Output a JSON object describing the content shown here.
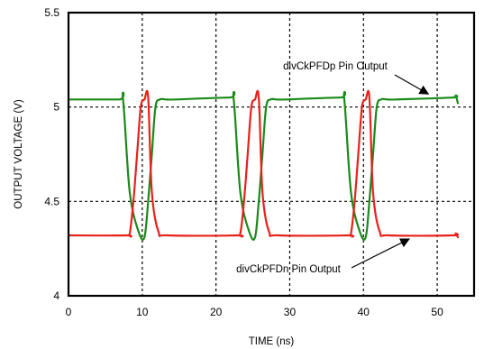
{
  "chart_data": {
    "type": "line",
    "title": "",
    "xlabel": "TIME (ns)",
    "ylabel": "OUTPUT VOLTAGE (V)",
    "xlim": [
      0,
      55
    ],
    "ylim": [
      4,
      5.5
    ],
    "xticks": [
      "0",
      "10",
      "20",
      "30",
      "40",
      "50"
    ],
    "yticks": [
      "4",
      "4.5",
      "5",
      "5.5"
    ],
    "grid": "dotted at x = 10, 20, 30, 40, 50 and y = 4.5, 5",
    "series": [
      {
        "name": "divCkPFDp Pin Output",
        "color": "#1a8a1a",
        "x": [
          0,
          6.8,
          7.4,
          8.3,
          9.5,
          10.3,
          10.8,
          11.3,
          11.8,
          12.4,
          13.2,
          14.5,
          21.8,
          22.4,
          23.3,
          24.5,
          25.3,
          25.8,
          26.3,
          26.8,
          27.4,
          28.2,
          29.5,
          36.8,
          37.4,
          38.3,
          39.5,
          40.3,
          40.8,
          41.3,
          41.8,
          42.4,
          43.2,
          44.5,
          52,
          52.5,
          52.8
        ],
        "values": [
          5.04,
          5.04,
          5.04,
          4.55,
          4.34,
          4.31,
          4.5,
          4.75,
          5.0,
          5.04,
          5.04,
          5.04,
          5.05,
          5.04,
          4.55,
          4.34,
          4.31,
          4.5,
          4.75,
          5.0,
          5.04,
          5.04,
          5.04,
          5.05,
          5.04,
          4.55,
          4.34,
          4.31,
          4.5,
          4.75,
          5.0,
          5.04,
          5.04,
          5.04,
          5.05,
          5.06,
          5.02
        ]
      },
      {
        "name": "divCkPFDn Pin Output",
        "color": "#e8211a",
        "x": [
          0,
          7.8,
          8.3,
          8.8,
          9.3,
          9.8,
          10.3,
          10.8,
          11.3,
          12.2,
          13.5,
          22.8,
          23.3,
          23.8,
          24.3,
          24.8,
          25.3,
          25.8,
          26.3,
          27.2,
          28.5,
          37.8,
          38.3,
          38.8,
          39.3,
          39.8,
          40.3,
          40.8,
          41.3,
          42.2,
          43.5,
          52,
          52.5,
          52.8
        ],
        "values": [
          4.32,
          4.32,
          4.33,
          4.5,
          4.75,
          5.0,
          5.04,
          5.05,
          4.55,
          4.34,
          4.32,
          4.32,
          4.33,
          4.5,
          4.75,
          5.0,
          5.04,
          5.05,
          4.55,
          4.34,
          4.32,
          4.32,
          4.33,
          4.5,
          4.75,
          5.0,
          5.04,
          5.05,
          4.55,
          4.34,
          4.32,
          4.32,
          4.33,
          4.31
        ]
      }
    ],
    "annotations": [
      {
        "text": "divCkPFDp Pin Output",
        "points_to": {
          "x": 48.8,
          "y": 5.045
        }
      },
      {
        "text": "divCkPFDn Pin Output",
        "points_to": {
          "x": 46.2,
          "y": 4.325
        }
      }
    ]
  }
}
